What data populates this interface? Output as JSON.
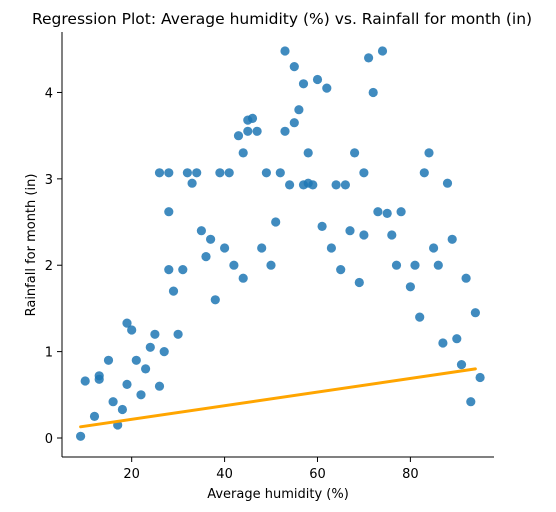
{
  "chart_data": {
    "type": "scatter",
    "title": "Regression Plot: Average humidity (%) vs. Rainfall for month (in)",
    "xlabel": "Average humidity (%)",
    "ylabel": "Rainfall for month (in)",
    "xlim": [
      5,
      98
    ],
    "ylim": [
      -0.22,
      4.7
    ],
    "xticks": [
      20,
      40,
      60,
      80
    ],
    "yticks": [
      0,
      1,
      2,
      3,
      4
    ],
    "grid": false,
    "colors": {
      "points": "#1f77b4",
      "regression_line": "#ffa500"
    },
    "series": [
      {
        "values": [
          [
            9,
            0.02
          ],
          [
            10,
            0.66
          ],
          [
            12,
            0.25
          ],
          [
            13,
            0.72
          ],
          [
            13,
            0.68
          ],
          [
            15,
            0.9
          ],
          [
            16,
            0.42
          ],
          [
            17,
            0.15
          ],
          [
            18,
            0.33
          ],
          [
            19,
            1.33
          ],
          [
            19,
            0.62
          ],
          [
            20,
            1.25
          ],
          [
            21,
            0.9
          ],
          [
            22,
            0.5
          ],
          [
            23,
            0.8
          ],
          [
            24,
            1.05
          ],
          [
            25,
            1.2
          ],
          [
            26,
            3.07
          ],
          [
            26,
            0.6
          ],
          [
            27,
            1.0
          ],
          [
            28,
            2.62
          ],
          [
            28,
            3.07
          ],
          [
            28,
            1.95
          ],
          [
            29,
            1.7
          ],
          [
            30,
            1.2
          ],
          [
            31,
            1.95
          ],
          [
            32,
            3.07
          ],
          [
            33,
            2.95
          ],
          [
            34,
            3.07
          ],
          [
            35,
            2.4
          ],
          [
            36,
            2.1
          ],
          [
            37,
            2.3
          ],
          [
            38,
            1.6
          ],
          [
            39,
            3.07
          ],
          [
            40,
            2.2
          ],
          [
            41,
            3.07
          ],
          [
            42,
            2.0
          ],
          [
            43,
            3.5
          ],
          [
            44,
            3.3
          ],
          [
            44,
            1.85
          ],
          [
            45,
            3.55
          ],
          [
            45,
            3.68
          ],
          [
            46,
            3.7
          ],
          [
            47,
            3.55
          ],
          [
            48,
            2.2
          ],
          [
            49,
            3.07
          ],
          [
            50,
            2.0
          ],
          [
            51,
            2.5
          ],
          [
            52,
            3.07
          ],
          [
            53,
            4.48
          ],
          [
            53,
            3.55
          ],
          [
            54,
            2.93
          ],
          [
            55,
            4.3
          ],
          [
            55,
            3.65
          ],
          [
            56,
            3.8
          ],
          [
            57,
            2.93
          ],
          [
            57,
            4.1
          ],
          [
            58,
            2.95
          ],
          [
            58,
            3.3
          ],
          [
            59,
            2.93
          ],
          [
            60,
            4.15
          ],
          [
            61,
            2.45
          ],
          [
            62,
            4.05
          ],
          [
            63,
            2.2
          ],
          [
            64,
            2.93
          ],
          [
            65,
            1.95
          ],
          [
            66,
            2.93
          ],
          [
            67,
            2.4
          ],
          [
            68,
            3.3
          ],
          [
            69,
            1.8
          ],
          [
            70,
            3.07
          ],
          [
            70,
            2.35
          ],
          [
            71,
            4.4
          ],
          [
            72,
            4.0
          ],
          [
            73,
            2.62
          ],
          [
            74,
            4.48
          ],
          [
            75,
            2.6
          ],
          [
            76,
            2.35
          ],
          [
            77,
            2.0
          ],
          [
            78,
            2.62
          ],
          [
            80,
            1.75
          ],
          [
            81,
            2.0
          ],
          [
            82,
            1.4
          ],
          [
            83,
            3.07
          ],
          [
            84,
            3.3
          ],
          [
            85,
            2.2
          ],
          [
            86,
            2.0
          ],
          [
            87,
            1.1
          ],
          [
            88,
            2.95
          ],
          [
            89,
            2.3
          ],
          [
            90,
            1.15
          ],
          [
            91,
            0.85
          ],
          [
            92,
            1.85
          ],
          [
            93,
            0.42
          ],
          [
            94,
            1.45
          ],
          [
            95,
            0.7
          ]
        ]
      }
    ],
    "regression_line": {
      "x": [
        9,
        94
      ],
      "y": [
        0.13,
        0.8
      ]
    }
  }
}
